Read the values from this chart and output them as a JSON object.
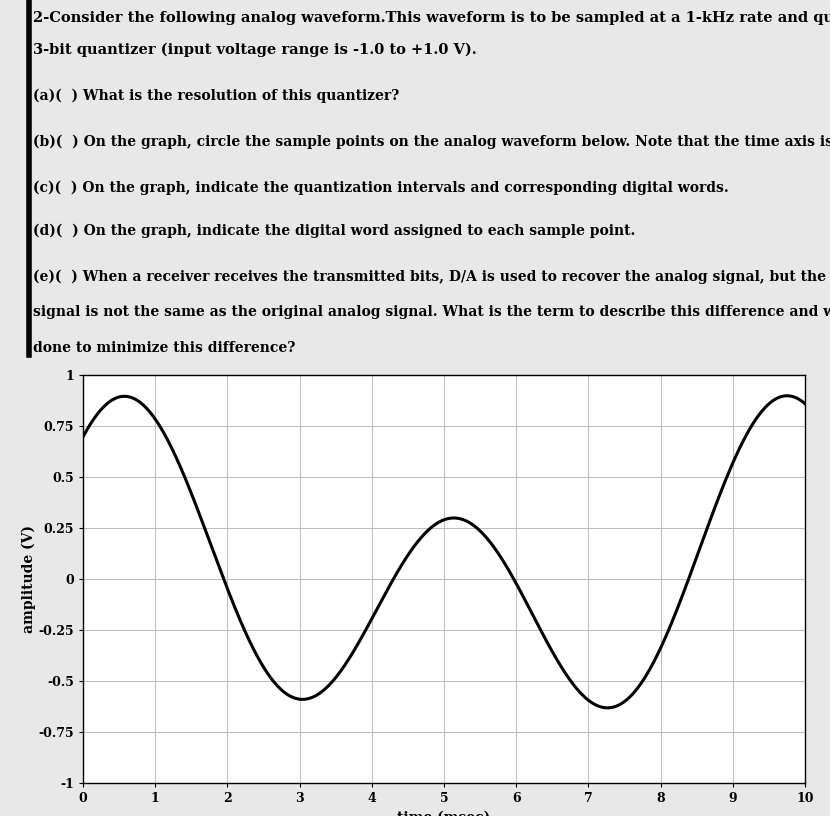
{
  "title_line1": "2-Consider the following analog waveform.This waveform is to be sampled at a 1-kHz rate and quantized with a",
  "title_line2": "3-bit quantizer (input voltage range is -1.0 to +1.0 V).",
  "q_a": "(a)(  ) What is the resolution of this quantizer?",
  "q_b": "(b)(  ) On the graph, circle the sample points on the analog waveform below. Note that the time axis is in msec.",
  "q_c": "(c)(  ) On the graph, indicate the quantization intervals and corresponding digital words.",
  "q_d": "(d)(  ) On the graph, indicate the digital word assigned to each sample point.",
  "q_e1": "(e)(  ) When a receiver receives the transmitted bits, D/A is used to recover the analog signal, but the recovered",
  "q_e2": "signal is not the same as the original analog signal. What is the term to describe this difference and what can be",
  "q_e3": "done to minimize this difference?",
  "xlabel": "time (msec)",
  "ylabel": "amplitude (V)",
  "xlim": [
    0,
    10
  ],
  "ylim": [
    -1.0,
    1.0
  ],
  "xticks": [
    0,
    1,
    2,
    3,
    4,
    5,
    6,
    7,
    8,
    9,
    10
  ],
  "ytick_vals": [
    -1.0,
    -0.75,
    -0.5,
    -0.25,
    0,
    0.25,
    0.5,
    0.75,
    1.0
  ],
  "ytick_labels": [
    "-1",
    "-0.75",
    "-0.5",
    "-0.25",
    "0",
    "0.25",
    "0.5",
    "0.75",
    "1"
  ],
  "line_color": "black",
  "line_width": 2.2,
  "grid_color": "#bbbbbb",
  "page_bg": "#e8e8e8",
  "text_bg": "white"
}
